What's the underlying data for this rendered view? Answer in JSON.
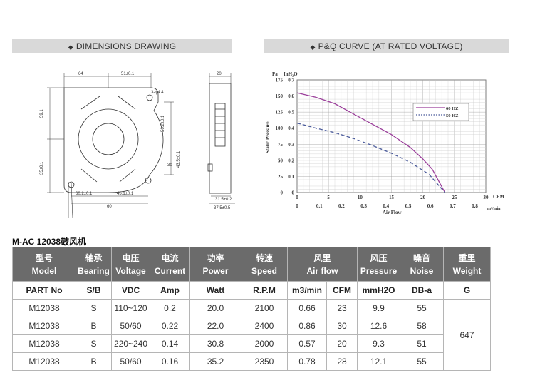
{
  "sections": {
    "dimensions": "DIMENSIONS DRAWING",
    "pq": "P&Q CURVE (AT RATED VOLTAGE)"
  },
  "drawing": {
    "front": {
      "top_dims": [
        "64",
        "51±0.1"
      ],
      "hole": "3-φ4.4",
      "left_dims": [
        "59.1",
        "35±0.1"
      ],
      "right_dims": [
        "56.2±0.1",
        "43.5±0.1"
      ],
      "outlet": "30",
      "bottom_dims": [
        "60.2±0.1",
        "45.1±0.1",
        "60"
      ]
    },
    "side": {
      "top": "20",
      "bottom": [
        "31.5±0.2",
        "37.5±0.5"
      ]
    }
  },
  "chart_data": {
    "type": "line",
    "xlabel": "Air Flow",
    "ylabel": "Static Pressure",
    "y_units_left": "Pa",
    "y_units_right": "InH₂O",
    "x_units_top": "CFM",
    "x_units_bottom": "m³/min",
    "x_ticks_cfm": [
      "0",
      "5",
      "10",
      "15",
      "20",
      "25",
      "30"
    ],
    "x_ticks_m3": [
      "0",
      "0.1",
      "0.2",
      "0.3",
      "0.4",
      "0.5",
      "0.6",
      "0.7",
      "0.8"
    ],
    "y_ticks_pa": [
      "0",
      "25",
      "50",
      "75",
      "100",
      "125",
      "150",
      "175"
    ],
    "y_ticks_inh2o": [
      "0",
      "0.1",
      "0.2",
      "0.3",
      "0.4",
      "0.5",
      "0.6",
      "0.7"
    ],
    "xlim": [
      0,
      30
    ],
    "ylim": [
      0,
      175
    ],
    "legend_position": "right",
    "series": [
      {
        "name": "60 HZ",
        "color": "#9b3f9b",
        "style": "solid",
        "x": [
          0,
          3,
          6,
          9,
          12,
          15,
          18,
          20,
          21.5,
          23.5
        ],
        "y": [
          155,
          148,
          138,
          122,
          106,
          90,
          70,
          52,
          36,
          0
        ]
      },
      {
        "name": "50 HZ",
        "color": "#4a5a9a",
        "style": "dashed",
        "x": [
          0,
          3,
          6,
          9,
          12,
          15,
          18,
          21,
          23.5
        ],
        "y": [
          108,
          100,
          93,
          84,
          73,
          61,
          47,
          28,
          0
        ]
      }
    ]
  },
  "table": {
    "title": "M-AC 12038鼓风机",
    "headers": [
      {
        "cn": "型号",
        "en": "Model"
      },
      {
        "cn": "轴承",
        "en": "Bearing"
      },
      {
        "cn": "电压",
        "en": "Voltage"
      },
      {
        "cn": "电流",
        "en": "Current"
      },
      {
        "cn": "功率",
        "en": "Power"
      },
      {
        "cn": "转速",
        "en": "Speed"
      },
      {
        "cn": "风里",
        "en": "Air flow"
      },
      {
        "cn": "风压",
        "en": "Pressure"
      },
      {
        "cn": "噪音",
        "en": "Noise"
      },
      {
        "cn": "重里",
        "en": "Weight"
      }
    ],
    "units": [
      "PART No",
      "S/B",
      "VDC",
      "Amp",
      "Watt",
      "R.P.M",
      "m3/min",
      "CFM",
      "mmH2O",
      "DB-a",
      "G"
    ],
    "rows": [
      [
        "M12038",
        "S",
        "110~120",
        "0.2",
        "20.0",
        "2100",
        "0.66",
        "23",
        "9.9",
        "55"
      ],
      [
        "M12038",
        "B",
        "50/60",
        "0.22",
        "22.0",
        "2400",
        "0.86",
        "30",
        "12.6",
        "58"
      ],
      [
        "M12038",
        "S",
        "220~240",
        "0.14",
        "30.8",
        "2000",
        "0.57",
        "20",
        "9.3",
        "51"
      ],
      [
        "M12038",
        "B",
        "50/60",
        "0.16",
        "35.2",
        "2350",
        "0.78",
        "28",
        "12.1",
        "55"
      ]
    ],
    "weight": "647"
  }
}
